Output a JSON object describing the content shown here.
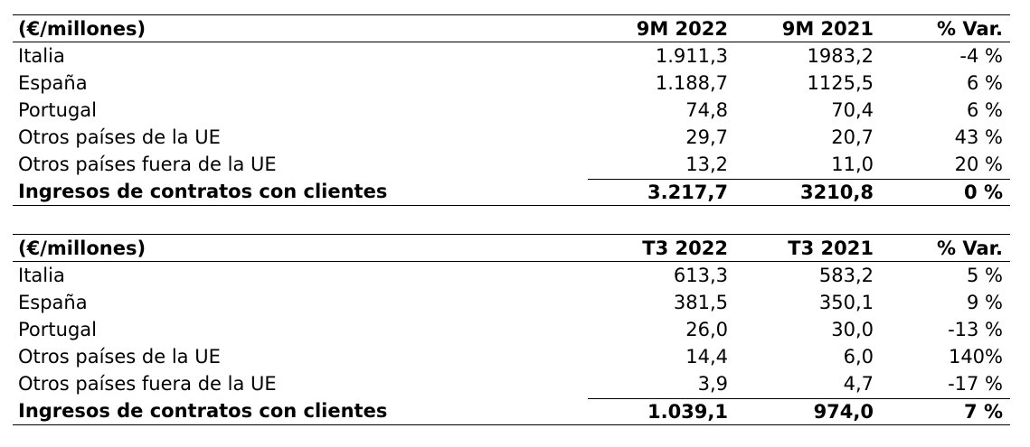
{
  "table1": {
    "header": {
      "label": "(€/millones)",
      "col1": "9M 2022",
      "col2": "9M 2021",
      "col3": "% Var."
    },
    "rows": [
      {
        "label": "Italia",
        "v1": "1.911,3",
        "v2": "1983,2",
        "v3": "-4 %"
      },
      {
        "label": "España",
        "v1": "1.188,7",
        "v2": "1125,5",
        "v3": "6 %"
      },
      {
        "label": "Portugal",
        "v1": "74,8",
        "v2": "70,4",
        "v3": "6 %"
      },
      {
        "label": "Otros países de la UE",
        "v1": "29,7",
        "v2": "20,7",
        "v3": "43 %"
      },
      {
        "label": "Otros países fuera de la UE",
        "v1": "13,2",
        "v2": "11,0",
        "v3": "20 %"
      }
    ],
    "total": {
      "label": "Ingresos de contratos con clientes",
      "v1": "3.217,7",
      "v2": "3210,8",
      "v3": "0 %"
    }
  },
  "table2": {
    "header": {
      "label": "(€/millones)",
      "col1": "T3 2022",
      "col2": "T3 2021",
      "col3": "% Var."
    },
    "rows": [
      {
        "label": "Italia",
        "v1": "613,3",
        "v2": "583,2",
        "v3": "5 %"
      },
      {
        "label": "España",
        "v1": "381,5",
        "v2": "350,1",
        "v3": "9 %"
      },
      {
        "label": "Portugal",
        "v1": "26,0",
        "v2": "30,0",
        "v3": "-13 %"
      },
      {
        "label": "Otros países de la UE",
        "v1": "14,4",
        "v2": "6,0",
        "v3": "140%"
      },
      {
        "label": "Otros países fuera de la UE",
        "v1": "3,9",
        "v2": "4,7",
        "v3": "-17 %"
      }
    ],
    "total": {
      "label": "Ingresos de contratos con clientes",
      "v1": "1.039,1",
      "v2": "974,0",
      "v3": "7 %"
    }
  }
}
